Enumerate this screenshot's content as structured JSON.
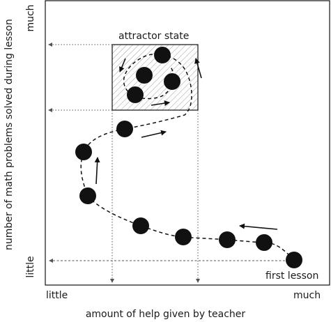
{
  "axes": {
    "x_label": "amount of help given by teacher",
    "x_low": "little",
    "x_high": "much",
    "y_label": "number of math problems solved during lesson",
    "y_low": "little",
    "y_high": "much"
  },
  "annotations": {
    "attractor": "attractor state",
    "first_lesson": "first lesson"
  },
  "colors": {
    "dot": "#111111",
    "line": "#111111",
    "hatch": "#9a9a9a",
    "guide": "#555555"
  }
}
